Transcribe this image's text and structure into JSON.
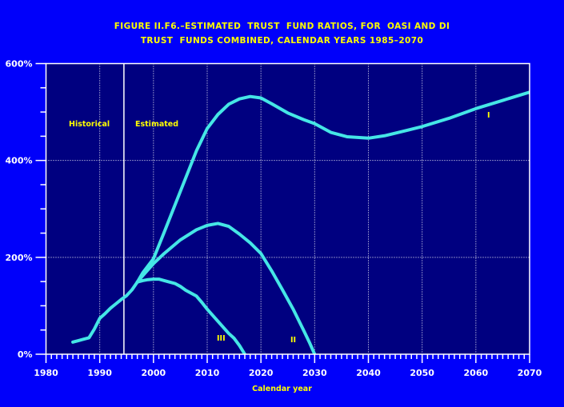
{
  "title": {
    "line1": "FIGURE II.F6.–ESTIMATED  TRUST  FUND RATIOS, FOR  OASI AND DI",
    "line2": "TRUST  FUNDS COMBINED, CALENDAR YEARS 1985–2070"
  },
  "labels": {
    "historical": "Historical",
    "estimated": "Estimated",
    "curve_I": "I",
    "curve_II": "II",
    "curve_III": "III",
    "xlabel": "Calendar year"
  },
  "colors": {
    "page_bg": "#0000FA",
    "plot_bg": "#000080",
    "axis": "#FFFFFF",
    "grid": "#FFFFFF",
    "curve": "#45E6E6",
    "text_yellow": "#FFFF00",
    "text_white": "#FFFFFF"
  },
  "chart_data": {
    "type": "line",
    "title": "FIGURE II.F6.–ESTIMATED TRUST FUND RATIOS, FOR OASI AND DI TRUST FUNDS COMBINED, CALENDAR YEARS 1985–2070",
    "xlabel": "Calendar year",
    "xlim": [
      1980,
      2070
    ],
    "ylim": [
      0,
      600
    ],
    "x_ticks": {
      "major": [
        1980,
        1990,
        2000,
        2010,
        2020,
        2030,
        2040,
        2050,
        2060,
        2070
      ],
      "labels": [
        "1980",
        "1990",
        "2000",
        "2010",
        "2020",
        "2030",
        "2040",
        "2050",
        "2060",
        "2070"
      ],
      "minor_step": 1
    },
    "y_ticks": {
      "major": [
        0,
        200,
        400,
        600
      ],
      "labels": [
        "0%",
        "200%",
        "400%",
        "600%"
      ],
      "minor_step": 50
    },
    "gridlines": {
      "style": "dotted",
      "x_years": [
        1990,
        2000,
        2010,
        2020,
        2030,
        2040,
        2050,
        2060
      ],
      "y_values": [
        200,
        400
      ]
    },
    "divider_year": 1994.5,
    "legend_position": "none",
    "series": [
      {
        "name": "Historical",
        "points": [
          [
            1985,
            25
          ],
          [
            1986,
            28
          ],
          [
            1987,
            31
          ],
          [
            1988,
            34
          ],
          [
            1989,
            52
          ],
          [
            1990,
            74
          ],
          [
            1991,
            84
          ],
          [
            1992,
            95
          ],
          [
            1993,
            104
          ],
          [
            1994,
            113
          ],
          [
            1995,
            121
          ],
          [
            1996,
            133
          ],
          [
            1997,
            149
          ]
        ]
      },
      {
        "name": "I",
        "points": [
          [
            1997,
            149
          ],
          [
            1998,
            168
          ],
          [
            2000,
            197
          ],
          [
            2002,
            252
          ],
          [
            2005,
            336
          ],
          [
            2008,
            420
          ],
          [
            2010,
            466
          ],
          [
            2012,
            495
          ],
          [
            2014,
            516
          ],
          [
            2016,
            527
          ],
          [
            2018,
            532
          ],
          [
            2020,
            529
          ],
          [
            2022,
            517
          ],
          [
            2025,
            498
          ],
          [
            2028,
            484
          ],
          [
            2030,
            476
          ],
          [
            2033,
            458
          ],
          [
            2036,
            449
          ],
          [
            2040,
            446
          ],
          [
            2043,
            451
          ],
          [
            2046,
            459
          ],
          [
            2050,
            470
          ],
          [
            2055,
            487
          ],
          [
            2060,
            507
          ],
          [
            2065,
            524
          ],
          [
            2070,
            541
          ]
        ]
      },
      {
        "name": "II",
        "points": [
          [
            1997,
            149
          ],
          [
            1998,
            162
          ],
          [
            2000,
            187
          ],
          [
            2002,
            208
          ],
          [
            2005,
            236
          ],
          [
            2008,
            257
          ],
          [
            2010,
            266
          ],
          [
            2012,
            270
          ],
          [
            2014,
            264
          ],
          [
            2016,
            248
          ],
          [
            2018,
            230
          ],
          [
            2020,
            208
          ],
          [
            2022,
            172
          ],
          [
            2024,
            133
          ],
          [
            2026,
            93
          ],
          [
            2028,
            48
          ],
          [
            2029,
            25
          ],
          [
            2030,
            0
          ]
        ]
      },
      {
        "name": "III",
        "points": [
          [
            1997,
            149
          ],
          [
            1998,
            152
          ],
          [
            1999,
            154
          ],
          [
            2000,
            155
          ],
          [
            2001,
            155
          ],
          [
            2002,
            152
          ],
          [
            2004,
            146
          ],
          [
            2005,
            140
          ],
          [
            2006,
            132
          ],
          [
            2008,
            120
          ],
          [
            2009,
            107
          ],
          [
            2010,
            93
          ],
          [
            2012,
            68
          ],
          [
            2014,
            43
          ],
          [
            2015,
            33
          ],
          [
            2016,
            18
          ],
          [
            2017,
            0
          ]
        ]
      }
    ]
  }
}
